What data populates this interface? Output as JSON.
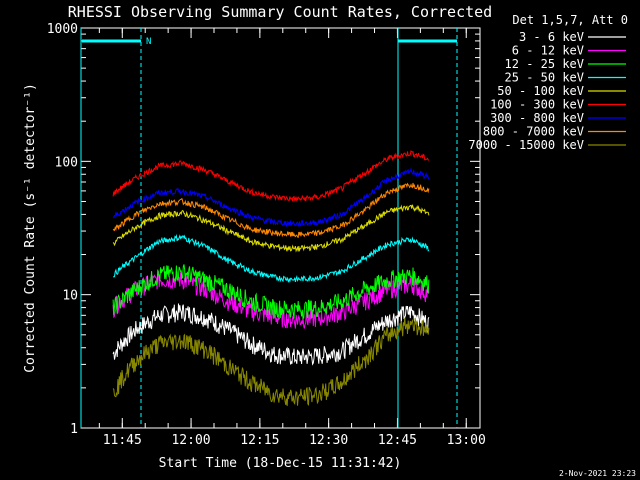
{
  "chart_data": {
    "type": "line",
    "title": "RHESSI Observing Summary Count Rates, Corrected",
    "xlabel": "Start Time (18-Dec-15 11:31:42)",
    "ylabel": "Corrected Count Rate (s⁻¹ detector⁻¹)",
    "yscale": "log",
    "xlim_min": [
      36,
      123
    ],
    "ylim": [
      1,
      1000
    ],
    "x_ticks": [
      {
        "m": 45,
        "label": "11:45"
      },
      {
        "m": 60,
        "label": "12:00"
      },
      {
        "m": 75,
        "label": "12:15"
      },
      {
        "m": 90,
        "label": "12:30"
      },
      {
        "m": 105,
        "label": "12:45"
      },
      {
        "m": 120,
        "label": "13:00"
      }
    ],
    "y_ticks": [
      {
        "v": 1,
        "label": "1"
      },
      {
        "v": 10,
        "label": "10"
      },
      {
        "v": 100,
        "label": "100"
      },
      {
        "v": 1000,
        "label": "1000"
      }
    ],
    "legend_title": "Det 1,5,7, Att 0",
    "legend_placement": "top-right, outside plot",
    "timestamp": "2-Nov-2021 23:23",
    "flag_label": "N",
    "flag_color": "#00ffff",
    "series": [
      {
        "name": "3 - 6 keV",
        "color": "#ffffff",
        "x": [
          43,
          48,
          53,
          58,
          63,
          68,
          73,
          78,
          83,
          88,
          93,
          98,
          103,
          108,
          112
        ],
        "values": [
          3.6,
          5.5,
          7,
          7.5,
          6.8,
          5.5,
          4.3,
          3.6,
          3.4,
          3.5,
          3.8,
          5,
          6.5,
          7.5,
          6
        ]
      },
      {
        "name": "6 - 12 keV",
        "color": "#ff00ff",
        "x": [
          43,
          48,
          53,
          58,
          63,
          68,
          73,
          78,
          83,
          88,
          93,
          98,
          103,
          108,
          112
        ],
        "values": [
          8,
          11,
          13,
          13,
          11,
          9,
          7.5,
          6.8,
          6.5,
          6.7,
          7.4,
          9,
          11,
          12,
          10
        ]
      },
      {
        "name": "12 - 25 keV",
        "color": "#00ff00",
        "x": [
          43,
          48,
          53,
          58,
          63,
          68,
          73,
          78,
          83,
          88,
          93,
          98,
          103,
          108,
          112
        ],
        "values": [
          8,
          11,
          14,
          15,
          13,
          11,
          9,
          8,
          7.8,
          8,
          9,
          11,
          13,
          14,
          12
        ]
      },
      {
        "name": "25 - 50 keV",
        "color": "#00ffff",
        "x": [
          43,
          48,
          53,
          58,
          63,
          68,
          73,
          78,
          83,
          88,
          93,
          98,
          103,
          108,
          112
        ],
        "values": [
          14,
          19,
          25,
          27,
          23,
          18,
          15,
          13.5,
          13,
          13.5,
          15,
          19,
          24,
          26,
          22
        ]
      },
      {
        "name": "50 - 100 keV",
        "color": "#dddd00",
        "x": [
          43,
          48,
          53,
          58,
          63,
          68,
          73,
          78,
          83,
          88,
          93,
          98,
          103,
          108,
          112
        ],
        "values": [
          24,
          32,
          39,
          41,
          36,
          30,
          25,
          23,
          22,
          23,
          26,
          33,
          42,
          46,
          40
        ]
      },
      {
        "name": "100 - 300 keV",
        "color": "#ff0000",
        "x": [
          43,
          48,
          53,
          58,
          63,
          68,
          73,
          78,
          83,
          88,
          93,
          98,
          103,
          108,
          112
        ],
        "values": [
          57,
          75,
          92,
          97,
          86,
          71,
          59,
          54,
          52,
          54,
          63,
          82,
          105,
          116,
          103
        ]
      },
      {
        "name": "300 - 800 keV",
        "color": "#0000ff",
        "x": [
          43,
          48,
          53,
          58,
          63,
          68,
          73,
          78,
          83,
          88,
          93,
          98,
          103,
          108,
          112
        ],
        "values": [
          38,
          49,
          58,
          60,
          54,
          45,
          38,
          35,
          34,
          35,
          40,
          53,
          73,
          84,
          76
        ]
      },
      {
        "name": "800 - 7000 keV",
        "color": "#ff8800",
        "x": [
          43,
          48,
          53,
          58,
          63,
          68,
          73,
          78,
          83,
          88,
          93,
          98,
          103,
          108,
          112
        ],
        "values": [
          30,
          40,
          48,
          50,
          45,
          37,
          31,
          29,
          28,
          29,
          33,
          43,
          59,
          67,
          61
        ]
      },
      {
        "name": "7000 - 15000 keV",
        "color": "#888800",
        "x": [
          43,
          48,
          53,
          58,
          63,
          68,
          73,
          78,
          83,
          88,
          93,
          98,
          103,
          108,
          112
        ],
        "values": [
          1.8,
          3.2,
          4.3,
          4.6,
          3.9,
          2.9,
          2.2,
          1.8,
          1.7,
          1.8,
          2.2,
          3.3,
          5,
          6.2,
          5.2
        ]
      }
    ]
  }
}
